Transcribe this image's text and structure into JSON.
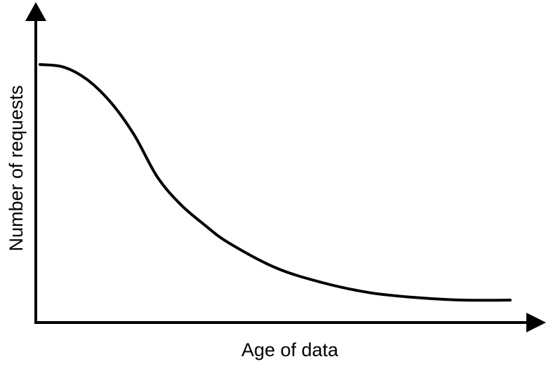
{
  "chart_data": {
    "type": "line",
    "title": "",
    "xlabel": "Age of data",
    "ylabel": "Number of requests",
    "xlim": [
      0,
      100
    ],
    "ylim": [
      0,
      100
    ],
    "grid": false,
    "legend": "none",
    "series": [
      {
        "color": "#000000",
        "x": [
          0,
          5,
          10,
          15,
          20,
          25,
          30,
          35,
          40,
          50,
          60,
          70,
          80,
          90,
          100
        ],
        "y": [
          100,
          99,
          94,
          85,
          72,
          55,
          44,
          36,
          29,
          19,
          13,
          9,
          7,
          6,
          6
        ]
      }
    ]
  }
}
